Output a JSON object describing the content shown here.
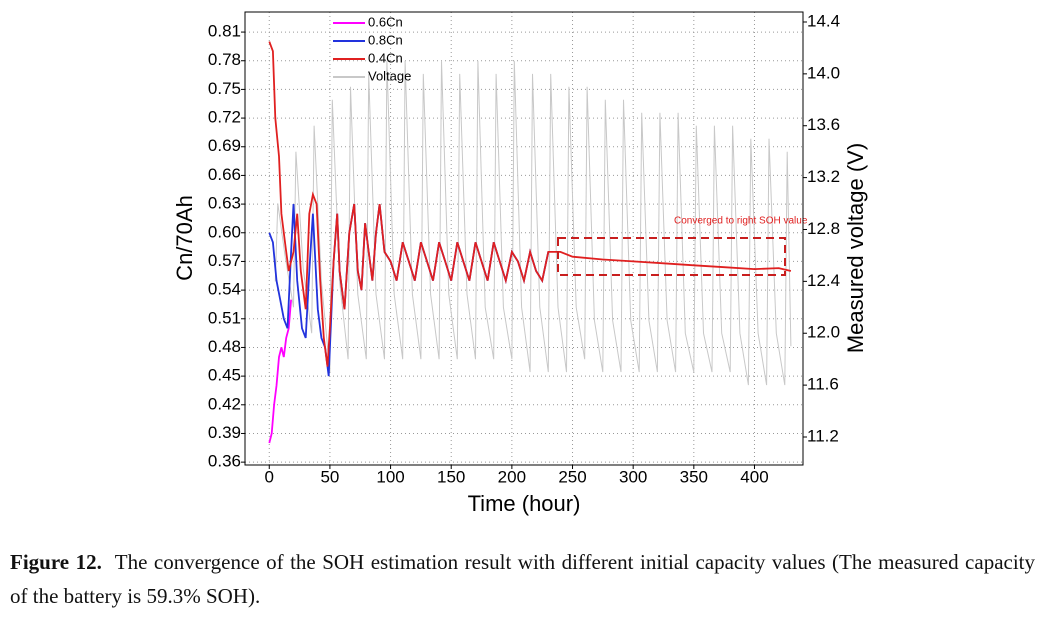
{
  "chart_data": {
    "type": "line",
    "xlabel": "Time (hour)",
    "ylabel": "Cn/70Ah",
    "y2label": "Measured voltage (V)",
    "xlim": [
      -20,
      440
    ],
    "xticks": [
      0,
      50,
      100,
      150,
      200,
      250,
      300,
      350,
      400
    ],
    "ylim": [
      0.357,
      0.831
    ],
    "yticks": [
      0.36,
      0.39,
      0.42,
      0.45,
      0.48,
      0.51,
      0.54,
      0.57,
      {
        "value": 0.6,
        "label": "0.60"
      },
      0.63,
      0.66,
      0.69,
      0.72,
      0.75,
      0.78,
      0.81
    ],
    "y2lim": [
      10.984,
      14.477
    ],
    "y2ticks": [
      11.2,
      11.6,
      {
        "value": 12,
        "label": "12.0"
      },
      12.4,
      12.8,
      13.2,
      13.6,
      {
        "value": 14,
        "label": "14.0"
      },
      14.4
    ],
    "grid": true,
    "annotation": "Converged to right SOH value",
    "series": [
      {
        "name": "0.6Cn",
        "color": "#ff00ff",
        "x": [
          0,
          2,
          4,
          6,
          8,
          10,
          12,
          14,
          16,
          18
        ],
        "values": [
          0.38,
          0.39,
          0.42,
          0.44,
          0.47,
          0.48,
          0.47,
          0.49,
          0.5,
          0.53
        ]
      },
      {
        "name": "0.8Cn",
        "color": "#2233dd",
        "x": [
          0,
          3,
          6,
          9,
          12,
          15,
          18,
          20,
          23,
          27,
          30,
          33,
          36,
          40,
          43,
          46,
          49,
          53,
          56,
          58,
          62,
          66,
          70,
          73,
          76,
          79,
          82,
          85,
          88,
          91,
          95,
          100,
          105,
          110,
          115,
          120,
          125,
          130,
          135,
          140,
          145,
          150,
          155,
          160,
          165,
          170,
          175,
          180,
          185,
          190,
          195,
          200,
          205,
          210,
          215,
          220,
          225,
          230
        ],
        "values": [
          0.6,
          0.59,
          0.55,
          0.53,
          0.51,
          0.5,
          0.58,
          0.63,
          0.55,
          0.5,
          0.49,
          0.56,
          0.62,
          0.52,
          0.49,
          0.48,
          0.45,
          0.57,
          0.62,
          0.56,
          0.52,
          0.6,
          0.63,
          0.56,
          0.54,
          0.61,
          0.58,
          0.55,
          0.6,
          0.63,
          0.58,
          0.57,
          0.55,
          0.59,
          0.57,
          0.55,
          0.59,
          0.57,
          0.55,
          0.59,
          0.57,
          0.55,
          0.59,
          0.57,
          0.55,
          0.59,
          0.57,
          0.55,
          0.59,
          0.57,
          0.55,
          0.58,
          0.57,
          0.55,
          0.58,
          0.56,
          0.55,
          0.58
        ]
      },
      {
        "name": "0.4Cn",
        "color": "#e02020",
        "x": [
          0,
          3,
          5,
          8,
          10,
          13,
          16,
          20,
          23,
          26,
          30,
          33,
          36,
          39,
          42,
          45,
          48,
          50,
          53,
          56,
          58,
          62,
          66,
          70,
          73,
          76,
          79,
          82,
          85,
          88,
          91,
          95,
          100,
          105,
          110,
          115,
          120,
          125,
          130,
          135,
          140,
          145,
          150,
          155,
          160,
          165,
          170,
          175,
          180,
          185,
          190,
          195,
          200,
          205,
          210,
          215,
          220,
          225,
          230,
          240,
          250,
          275,
          300,
          325,
          350,
          375,
          400,
          420,
          430
        ],
        "values": [
          0.8,
          0.79,
          0.72,
          0.68,
          0.62,
          0.59,
          0.56,
          0.58,
          0.62,
          0.56,
          0.52,
          0.62,
          0.64,
          0.63,
          0.55,
          0.49,
          0.46,
          0.5,
          0.57,
          0.62,
          0.56,
          0.52,
          0.6,
          0.63,
          0.56,
          0.54,
          0.61,
          0.58,
          0.55,
          0.6,
          0.63,
          0.58,
          0.57,
          0.55,
          0.59,
          0.57,
          0.55,
          0.59,
          0.57,
          0.55,
          0.59,
          0.57,
          0.55,
          0.59,
          0.57,
          0.55,
          0.59,
          0.57,
          0.55,
          0.59,
          0.57,
          0.55,
          0.58,
          0.57,
          0.55,
          0.58,
          0.56,
          0.55,
          0.58,
          0.58,
          0.575,
          0.572,
          0.57,
          0.568,
          0.566,
          0.564,
          0.562,
          0.563,
          0.56
        ]
      },
      {
        "name": "Voltage",
        "color": "#c8c8c8",
        "axis": "y2",
        "x": [
          5,
          7,
          13,
          20,
          22,
          28,
          35,
          37,
          43,
          50,
          52,
          58,
          65,
          67,
          73,
          80,
          82,
          88,
          95,
          97,
          103,
          110,
          112,
          118,
          125,
          127,
          133,
          140,
          142,
          148,
          155,
          157,
          163,
          170,
          172,
          178,
          185,
          187,
          193,
          200,
          202,
          208,
          215,
          217,
          223,
          230,
          232,
          238,
          245,
          247,
          253,
          260,
          262,
          268,
          275,
          277,
          283,
          290,
          292,
          298,
          305,
          307,
          313,
          320,
          322,
          328,
          335,
          337,
          343,
          350,
          352,
          358,
          365,
          367,
          373,
          380,
          382,
          388,
          395,
          397,
          403,
          410,
          412,
          418,
          425,
          427,
          430
        ],
        "values": [
          12.4,
          13.0,
          12.6,
          12.2,
          13.4,
          12.5,
          12.0,
          13.6,
          12.4,
          11.7,
          13.8,
          12.4,
          11.8,
          13.9,
          12.3,
          11.8,
          14.0,
          12.3,
          11.8,
          14.1,
          12.3,
          11.8,
          14.1,
          12.3,
          11.8,
          14.0,
          12.3,
          11.8,
          14.1,
          12.3,
          11.8,
          14.0,
          12.3,
          11.8,
          14.1,
          12.2,
          11.8,
          14.0,
          12.2,
          11.8,
          14.1,
          12.2,
          11.7,
          14.0,
          12.2,
          11.7,
          14.0,
          12.2,
          11.7,
          13.9,
          12.2,
          11.8,
          13.9,
          12.1,
          11.7,
          13.8,
          12.1,
          11.7,
          13.8,
          12.1,
          11.7,
          13.7,
          12.1,
          11.7,
          13.7,
          12.1,
          11.7,
          13.7,
          12.0,
          11.7,
          13.6,
          12.0,
          11.7,
          13.6,
          12.0,
          11.7,
          13.6,
          12.0,
          11.6,
          13.5,
          12.0,
          11.6,
          13.5,
          12.0,
          11.6,
          13.4,
          11.9
        ]
      }
    ]
  },
  "caption": {
    "label": "Figure 12.",
    "text": "The convergence of the SOH estimation result with different initial capacity values (The measured capacity of the battery is 59.3% SOH)."
  }
}
